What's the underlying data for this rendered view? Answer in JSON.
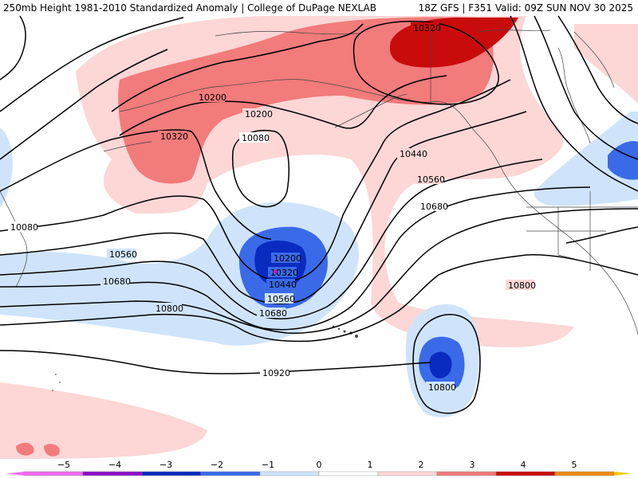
{
  "header": {
    "title_left": "250mb Height 1981-2010 Standardized Anomaly | College of DuPage NEXLAB",
    "title_right": "18Z GFS | F351 Valid: 09Z SUN NOV 30 2025"
  },
  "colorbar": {
    "ticks": [
      "−5",
      "−4",
      "−3",
      "−2",
      "−1",
      "0",
      "1",
      "2",
      "3",
      "4",
      "5"
    ],
    "colors": [
      "#f06cf0",
      "#8a10c8",
      "#0a2bc0",
      "#3a6ae8",
      "#cfe4fb",
      "#ffffff",
      "#fdd6d6",
      "#f27b7b",
      "#c80c0c",
      "#f08a10",
      "#f4c800"
    ]
  },
  "contour_labels": {
    "c10320_n": "10320",
    "c10200_a": "10200",
    "c10200_b": "10200",
    "c10320_w": "10320",
    "c10080_a": "10080",
    "c10080_w": "10080",
    "c10440_e": "10440",
    "c10560_e": "10560",
    "c10680_e": "10680",
    "c10560_w": "10560",
    "c10680_w": "10680",
    "c10800_w": "10800",
    "c10800_e": "10800",
    "c10200_low": "10200",
    "c10320_low": "10320",
    "c10440_low": "10440",
    "c10560_low": "10560",
    "c10680_low": "10680",
    "c10920": "10920",
    "c10800_low2": "10800"
  }
}
